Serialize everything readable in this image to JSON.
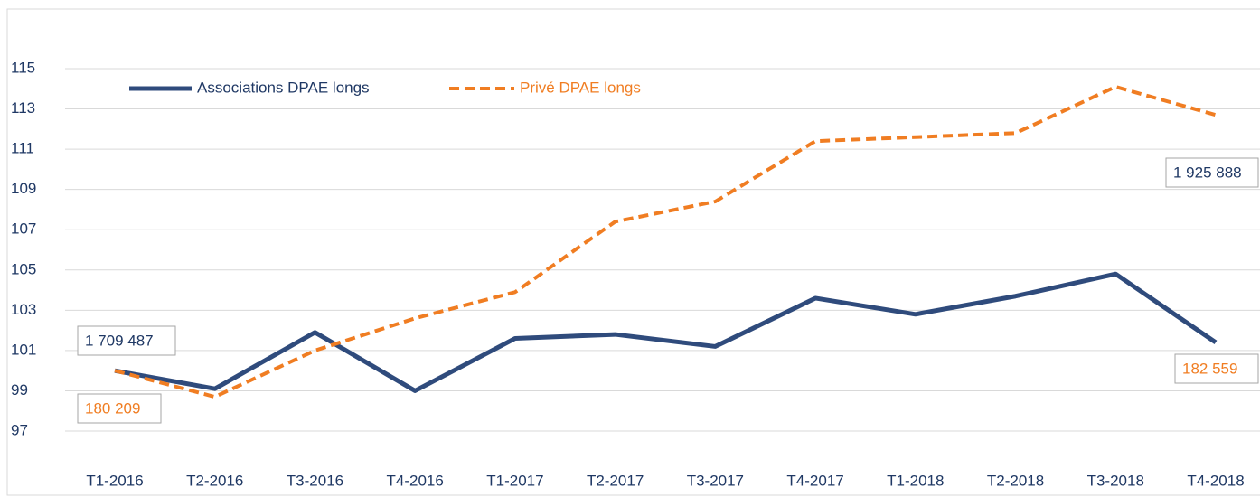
{
  "chart_data": {
    "type": "line",
    "categories": [
      "T1-2016",
      "T2-2016",
      "T3-2016",
      "T4-2016",
      "T1-2017",
      "T2-2017",
      "T3-2017",
      "T4-2017",
      "T1-2018",
      "T2-2018",
      "T3-2018",
      "T4-2018"
    ],
    "series": [
      {
        "name": "Associations DPAE longs",
        "color": "#2f4b7c",
        "values": [
          100,
          99.1,
          101.9,
          99.0,
          101.6,
          101.8,
          101.2,
          103.6,
          102.8,
          103.7,
          104.8,
          101.4
        ]
      },
      {
        "name": "Privé DPAE longs",
        "color": "#f07d22",
        "values": [
          100,
          98.7,
          101.0,
          102.6,
          103.9,
          107.4,
          108.4,
          111.4,
          111.6,
          111.8,
          114.1,
          112.7
        ]
      }
    ],
    "ylim": [
      97,
      115
    ],
    "yticks": [
      97,
      99,
      101,
      103,
      105,
      107,
      109,
      111,
      113,
      115
    ],
    "grid": true,
    "legend": "top-left",
    "annotations": [
      "1 709 487",
      "180 209",
      "1 925 888",
      "182 559"
    ]
  }
}
